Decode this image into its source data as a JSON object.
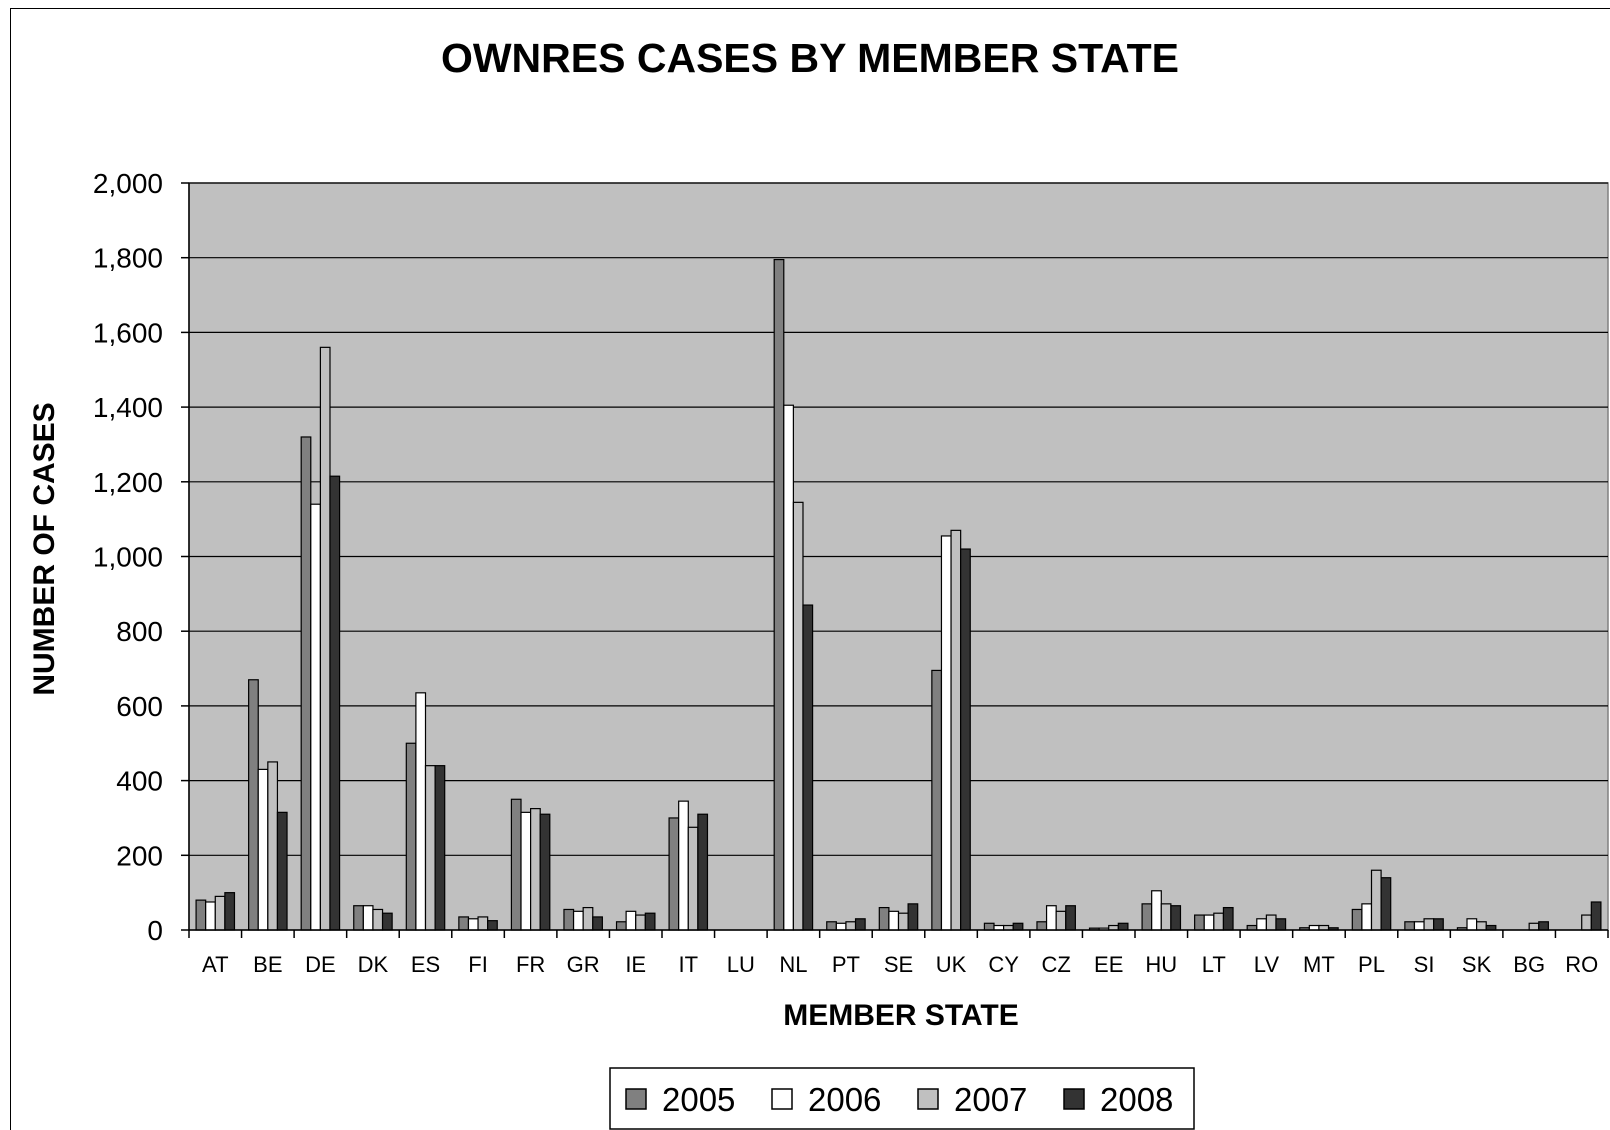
{
  "chart_data": {
    "type": "bar",
    "title": "OWNRES CASES BY MEMBER STATE",
    "xlabel": "MEMBER STATE",
    "ylabel": "NUMBER OF CASES",
    "ylim": [
      0,
      2000
    ],
    "yticks": [
      "0",
      "200",
      "400",
      "600",
      "800",
      "1,000",
      "1,200",
      "1,400",
      "1,600",
      "1,800",
      "2,000"
    ],
    "ytick_values": [
      0,
      200,
      400,
      600,
      800,
      1000,
      1200,
      1400,
      1600,
      1800,
      2000
    ],
    "grid": true,
    "legend_position": "bottom",
    "categories": [
      "AT",
      "BE",
      "DE",
      "DK",
      "ES",
      "FI",
      "FR",
      "GR",
      "IE",
      "IT",
      "LU",
      "NL",
      "PT",
      "SE",
      "UK",
      "CY",
      "CZ",
      "EE",
      "HU",
      "LT",
      "LV",
      "MT",
      "PL",
      "SI",
      "SK",
      "BG",
      "RO"
    ],
    "series": [
      {
        "name": "2005",
        "color": "#808080",
        "values": [
          80,
          670,
          1320,
          65,
          500,
          35,
          350,
          55,
          22,
          300,
          0,
          1795,
          22,
          60,
          695,
          18,
          22,
          5,
          70,
          40,
          12,
          6,
          55,
          22,
          6,
          0,
          0
        ]
      },
      {
        "name": "2006",
        "color": "#ffffff",
        "values": [
          75,
          430,
          1140,
          65,
          635,
          30,
          315,
          50,
          50,
          345,
          0,
          1405,
          18,
          50,
          1055,
          12,
          65,
          5,
          105,
          40,
          30,
          12,
          70,
          22,
          30,
          0,
          0
        ]
      },
      {
        "name": "2007",
        "color": "#c0c0c0",
        "values": [
          90,
          450,
          1560,
          55,
          440,
          35,
          325,
          60,
          40,
          275,
          0,
          1145,
          22,
          45,
          1070,
          12,
          50,
          12,
          70,
          45,
          40,
          12,
          160,
          30,
          22,
          18,
          40
        ]
      },
      {
        "name": "2008",
        "color": "#333333",
        "values": [
          100,
          315,
          1215,
          45,
          440,
          25,
          310,
          35,
          45,
          310,
          0,
          870,
          30,
          70,
          1020,
          18,
          65,
          18,
          65,
          60,
          30,
          6,
          140,
          30,
          12,
          22,
          75
        ]
      }
    ]
  }
}
